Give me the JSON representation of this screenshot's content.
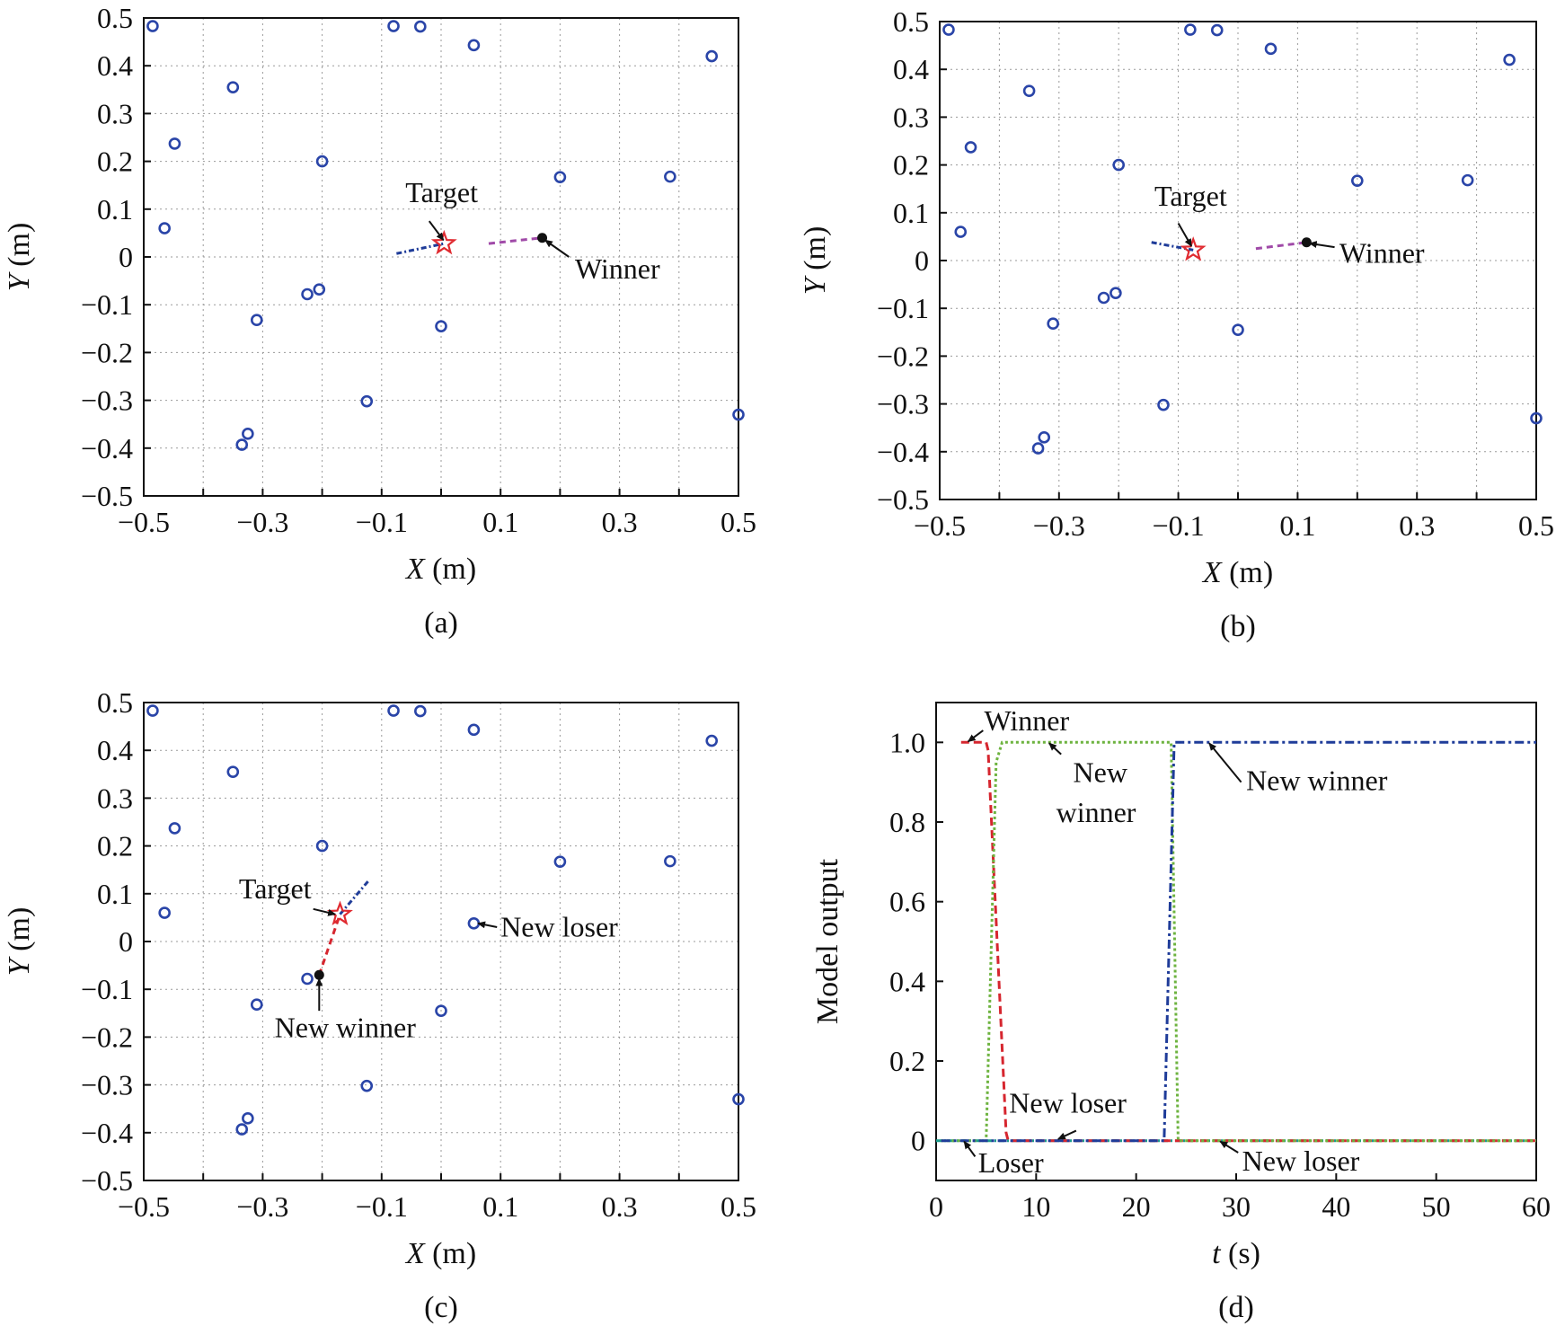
{
  "chart_data": [
    {
      "type": "scatter",
      "panel_label": "(a)",
      "xlabel_var": "X",
      "xlabel_unit": " (m)",
      "ylabel_var": "Y",
      "ylabel_unit": " (m)",
      "xlim": [
        -0.5,
        0.5
      ],
      "ylim": [
        -0.5,
        0.5
      ],
      "xticks": [
        -0.5,
        -0.4,
        -0.3,
        -0.2,
        -0.1,
        0,
        0.1,
        0.2,
        0.3,
        0.4,
        0.5
      ],
      "xtick_labels": [
        "−0.5",
        "",
        "−0.3",
        "",
        "−0.1",
        "",
        "0.1",
        "",
        "0.3",
        "",
        "0.5"
      ],
      "yticks": [
        -0.5,
        -0.4,
        -0.3,
        -0.2,
        -0.1,
        0,
        0.1,
        0.2,
        0.3,
        0.4,
        0.5
      ],
      "ytick_labels": [
        "−0.5",
        "−0.4",
        "−0.3",
        "−0.2",
        "−0.1",
        "0",
        "0.1",
        "0.2",
        "0.3",
        "0.4",
        "0.5"
      ],
      "grid": true,
      "points": [
        [
          -0.485,
          0.483
        ],
        [
          -0.448,
          0.237
        ],
        [
          -0.465,
          0.06
        ],
        [
          -0.35,
          0.355
        ],
        [
          -0.2,
          0.2
        ],
        [
          -0.225,
          -0.078
        ],
        [
          -0.205,
          -0.068
        ],
        [
          -0.31,
          -0.132
        ],
        [
          -0.125,
          -0.302
        ],
        [
          -0.325,
          -0.37
        ],
        [
          -0.335,
          -0.393
        ],
        [
          -0.08,
          0.483
        ],
        [
          -0.035,
          0.482
        ],
        [
          0.055,
          0.443
        ],
        [
          0.0,
          -0.145
        ],
        [
          0.2,
          0.167
        ],
        [
          0.385,
          0.168
        ],
        [
          0.455,
          0.42
        ],
        [
          0.5,
          -0.33
        ]
      ],
      "target": [
        0.005,
        0.028
      ],
      "winner": [
        0.17,
        0.04
      ],
      "paths": [
        {
          "color": "#1f3c99",
          "dash": "6 3 2 3",
          "points": [
            [
              -0.075,
              0.007
            ],
            [
              0.005,
              0.028
            ]
          ]
        },
        {
          "color": "#a04aa8",
          "dash": "7 5",
          "points": [
            [
              0.08,
              0.028
            ],
            [
              0.17,
              0.04
            ]
          ]
        }
      ],
      "annotations": [
        {
          "text": "Target",
          "text_at": [
            -0.06,
            0.115
          ],
          "arrow_from": [
            -0.02,
            0.075
          ],
          "arrow_to": [
            0.004,
            0.035
          ]
        },
        {
          "text": "Winner",
          "text_at": [
            0.225,
            -0.045
          ],
          "arrow_from": [
            0.215,
            0.0
          ],
          "arrow_to": [
            0.175,
            0.035
          ]
        }
      ]
    },
    {
      "type": "scatter",
      "panel_label": "(b)",
      "xlabel_var": "X",
      "xlabel_unit": " (m)",
      "ylabel_var": "Y",
      "ylabel_unit": " (m)",
      "xlim": [
        -0.5,
        0.5
      ],
      "ylim": [
        -0.5,
        0.5
      ],
      "xticks": [
        -0.5,
        -0.4,
        -0.3,
        -0.2,
        -0.1,
        0,
        0.1,
        0.2,
        0.3,
        0.4,
        0.5
      ],
      "xtick_labels": [
        "−0.5",
        "",
        "−0.3",
        "",
        "−0.1",
        "",
        "0.1",
        "",
        "0.3",
        "",
        "0.5"
      ],
      "yticks": [
        -0.5,
        -0.4,
        -0.3,
        -0.2,
        -0.1,
        0,
        0.1,
        0.2,
        0.3,
        0.4,
        0.5
      ],
      "ytick_labels": [
        "−0.5",
        "−0.4",
        "−0.3",
        "−0.2",
        "−0.1",
        "0",
        "0.1",
        "0.2",
        "0.3",
        "0.4",
        "0.5"
      ],
      "grid": true,
      "points": [
        [
          -0.485,
          0.483
        ],
        [
          -0.448,
          0.237
        ],
        [
          -0.465,
          0.06
        ],
        [
          -0.35,
          0.355
        ],
        [
          -0.2,
          0.2
        ],
        [
          -0.225,
          -0.078
        ],
        [
          -0.205,
          -0.068
        ],
        [
          -0.31,
          -0.132
        ],
        [
          -0.125,
          -0.302
        ],
        [
          -0.325,
          -0.37
        ],
        [
          -0.335,
          -0.393
        ],
        [
          -0.08,
          0.483
        ],
        [
          -0.035,
          0.482
        ],
        [
          0.055,
          0.443
        ],
        [
          0.0,
          -0.145
        ],
        [
          0.2,
          0.167
        ],
        [
          0.385,
          0.168
        ],
        [
          0.455,
          0.42
        ],
        [
          0.5,
          -0.33
        ]
      ],
      "target": [
        -0.075,
        0.022
      ],
      "winner": [
        0.115,
        0.038
      ],
      "paths": [
        {
          "color": "#1f3c99",
          "dash": "6 3 2 3",
          "points": [
            [
              -0.145,
              0.038
            ],
            [
              -0.075,
              0.022
            ]
          ]
        },
        {
          "color": "#a04aa8",
          "dash": "7 5",
          "points": [
            [
              0.03,
              0.025
            ],
            [
              0.115,
              0.038
            ]
          ]
        }
      ],
      "annotations": [
        {
          "text": "Target",
          "text_at": [
            -0.14,
            0.115
          ],
          "arrow_from": [
            -0.1,
            0.078
          ],
          "arrow_to": [
            -0.078,
            0.03
          ]
        },
        {
          "text": "Winner",
          "text_at": [
            0.17,
            -0.005
          ],
          "arrow_from": [
            0.162,
            0.028
          ],
          "arrow_to": [
            0.12,
            0.036
          ]
        }
      ]
    },
    {
      "type": "scatter",
      "panel_label": "(c)",
      "xlabel_var": "X",
      "xlabel_unit": " (m)",
      "ylabel_var": "Y",
      "ylabel_unit": " (m)",
      "xlim": [
        -0.5,
        0.5
      ],
      "ylim": [
        -0.5,
        0.5
      ],
      "xticks": [
        -0.5,
        -0.4,
        -0.3,
        -0.2,
        -0.1,
        0,
        0.1,
        0.2,
        0.3,
        0.4,
        0.5
      ],
      "xtick_labels": [
        "−0.5",
        "",
        "−0.3",
        "",
        "−0.1",
        "",
        "0.1",
        "",
        "0.3",
        "",
        "0.5"
      ],
      "yticks": [
        -0.5,
        -0.4,
        -0.3,
        -0.2,
        -0.1,
        0,
        0.1,
        0.2,
        0.3,
        0.4,
        0.5
      ],
      "ytick_labels": [
        "−0.5",
        "−0.4",
        "−0.3",
        "−0.2",
        "−0.1",
        "0",
        "0.1",
        "0.2",
        "0.3",
        "0.4",
        "0.5"
      ],
      "grid": true,
      "points": [
        [
          -0.485,
          0.483
        ],
        [
          -0.448,
          0.237
        ],
        [
          -0.465,
          0.06
        ],
        [
          -0.35,
          0.355
        ],
        [
          -0.2,
          0.2
        ],
        [
          -0.225,
          -0.078
        ],
        [
          -0.31,
          -0.132
        ],
        [
          -0.125,
          -0.302
        ],
        [
          -0.325,
          -0.37
        ],
        [
          -0.335,
          -0.393
        ],
        [
          -0.08,
          0.483
        ],
        [
          -0.035,
          0.482
        ],
        [
          0.055,
          0.443
        ],
        [
          0.0,
          -0.145
        ],
        [
          0.055,
          0.038
        ],
        [
          0.2,
          0.167
        ],
        [
          0.385,
          0.168
        ],
        [
          0.455,
          0.42
        ],
        [
          0.5,
          -0.33
        ]
      ],
      "target": [
        -0.17,
        0.057
      ],
      "winner": [
        -0.205,
        -0.07
      ],
      "paths": [
        {
          "color": "#1f3c99",
          "dash": "6 3 2 3",
          "points": [
            [
              -0.17,
              0.057
            ],
            [
              -0.12,
              0.13
            ]
          ]
        },
        {
          "color": "#d6262f",
          "dash": "7 5",
          "points": [
            [
              -0.205,
              -0.07
            ],
            [
              -0.17,
              0.057
            ]
          ]
        }
      ],
      "annotations": [
        {
          "text": "Target",
          "text_at": [
            -0.34,
            0.09
          ],
          "arrow_from": [
            -0.215,
            0.068
          ],
          "arrow_to": [
            -0.178,
            0.057
          ]
        },
        {
          "text": "New loser",
          "text_at": [
            0.1,
            0.01
          ],
          "arrow_from": [
            0.094,
            0.03
          ],
          "arrow_to": [
            0.062,
            0.038
          ]
        },
        {
          "text": "New winner",
          "text_at": [
            -0.28,
            -0.2
          ],
          "arrow_from": [
            -0.205,
            -0.145
          ],
          "arrow_to": [
            -0.205,
            -0.078
          ]
        }
      ]
    },
    {
      "type": "line",
      "panel_label": "(d)",
      "xlabel_var": "t",
      "xlabel_unit": " (s)",
      "ylabel_var": "",
      "ylabel_unit": "Model output",
      "xlim": [
        0,
        60
      ],
      "ylim": [
        -0.1,
        1.1
      ],
      "xticks": [
        0,
        10,
        20,
        30,
        40,
        50,
        60
      ],
      "xtick_labels": [
        "0",
        "10",
        "20",
        "30",
        "40",
        "50",
        "60"
      ],
      "yticks": [
        0,
        0.2,
        0.4,
        0.6,
        0.8,
        1.0
      ],
      "ytick_labels": [
        "0",
        "0.2",
        "0.4",
        "0.6",
        "0.8",
        "1.0"
      ],
      "grid": false,
      "series": [
        {
          "color": "#1a9c8c",
          "dash": "6 3 2 3",
          "x": [
            0,
            60
          ],
          "y": [
            0,
            0
          ]
        },
        {
          "color": "#d6262f",
          "dash": "9 5",
          "x": [
            2.5,
            5,
            5.2,
            7,
            7.2,
            60
          ],
          "y": [
            1,
            1,
            0.98,
            0.02,
            0,
            0
          ]
        },
        {
          "color": "#6db33f",
          "dash": "3 3",
          "x": [
            0.5,
            5,
            6,
            6.6,
            23.5,
            24.2,
            60
          ],
          "y": [
            0,
            0,
            0.95,
            1,
            1,
            0,
            0
          ]
        },
        {
          "color": "#1f3c99",
          "dash": "10 4 3 4",
          "x": [
            0.5,
            22.8,
            23.8,
            60
          ],
          "y": [
            0,
            0,
            1,
            1
          ]
        }
      ],
      "annotations": [
        {
          "text": "Winner",
          "text_at": [
            4.8,
            1.03
          ],
          "arrow_from": [
            4.7,
            1.03
          ],
          "arrow_to": [
            3.2,
            1.002
          ]
        },
        {
          "text": "New",
          "text_at": [
            13.7,
            0.9
          ],
          "arrow_from": [
            12.5,
            0.97
          ],
          "arrow_to": [
            11.3,
            0.998
          ]
        },
        {
          "text": "winner",
          "text_at": [
            12,
            0.8
          ],
          "arrow_from": null,
          "arrow_to": null
        },
        {
          "text": "New winner",
          "text_at": [
            31,
            0.88
          ],
          "arrow_from": [
            30.5,
            0.9
          ],
          "arrow_to": [
            27.3,
            0.998
          ]
        },
        {
          "text": "New loser",
          "text_at": [
            7.3,
            0.07
          ],
          "arrow_from": [
            14,
            0.025
          ],
          "arrow_to": [
            12.2,
            0.004
          ]
        },
        {
          "text": "Loser",
          "text_at": [
            4.2,
            -0.08
          ],
          "arrow_from": [
            3.9,
            -0.04
          ],
          "arrow_to": [
            2.8,
            -0.002
          ]
        },
        {
          "text": "New loser",
          "text_at": [
            30.6,
            -0.075
          ],
          "arrow_from": [
            30.2,
            -0.03
          ],
          "arrow_to": [
            28.4,
            -0.002
          ]
        }
      ]
    }
  ]
}
